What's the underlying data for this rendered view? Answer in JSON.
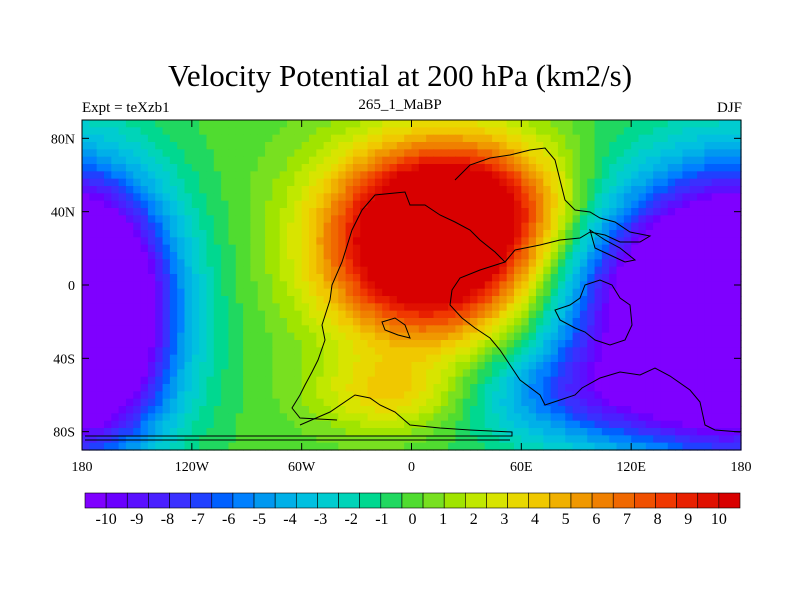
{
  "chart_data": {
    "type": "heatmap",
    "title": "Velocity Potential at 200 hPa (km2/s)",
    "subtitle_left": "Expt = teXzb1",
    "subtitle_center": "265_1_MaBP",
    "subtitle_right": "DJF",
    "xlim": [
      -180,
      180
    ],
    "ylim": [
      -90,
      90
    ],
    "x_ticks": [
      {
        "value": -180,
        "label": "180"
      },
      {
        "value": -120,
        "label": "120W"
      },
      {
        "value": -60,
        "label": "60W"
      },
      {
        "value": 0,
        "label": "0"
      },
      {
        "value": 60,
        "label": "60E"
      },
      {
        "value": 120,
        "label": "120E"
      },
      {
        "value": 180,
        "label": "180"
      }
    ],
    "y_ticks": [
      {
        "value": 80,
        "label": "80N"
      },
      {
        "value": 40,
        "label": "40N"
      },
      {
        "value": 0,
        "label": "0"
      },
      {
        "value": -40,
        "label": "40S"
      },
      {
        "value": -80,
        "label": "80S"
      }
    ],
    "colorbar": {
      "labels": [
        "-10",
        "-9",
        "-8",
        "-7",
        "-6",
        "-5",
        "-4",
        "-3",
        "-2",
        "-1",
        "0",
        "1",
        "2",
        "3",
        "4",
        "5",
        "6",
        "7",
        "8",
        "9",
        "10"
      ],
      "colors": [
        "#7f00ff",
        "#6a00ff",
        "#5a10ff",
        "#4a20ff",
        "#3a30ff",
        "#2040ff",
        "#0060ff",
        "#0080ff",
        "#0098f0",
        "#00b0e8",
        "#00c0e0",
        "#00ccd0",
        "#00d4b8",
        "#00d890",
        "#20d860",
        "#50dc30",
        "#78e020",
        "#a0e400",
        "#c0e800",
        "#d8e400",
        "#e8d800",
        "#f0c800",
        "#f0b000",
        "#f09800",
        "#f08000",
        "#f06800",
        "#f05000",
        "#f03800",
        "#e82000",
        "#e01000",
        "#d80000"
      ]
    },
    "field_sources": [
      {
        "lon": 10,
        "lat": 20,
        "sx": 40,
        "sy": 35,
        "amp": 15
      },
      {
        "lon": 35,
        "lat": 45,
        "sx": 40,
        "sy": 25,
        "amp": 6
      },
      {
        "lon": -10,
        "lat": -60,
        "sx": 30,
        "sy": 15,
        "amp": 4
      },
      {
        "lon": 145,
        "lat": -10,
        "sx": 45,
        "sy": 45,
        "amp": -14
      },
      {
        "lon": -175,
        "lat": -15,
        "sx": 30,
        "sy": 50,
        "amp": -13
      },
      {
        "lon": 100,
        "lat": -60,
        "sx": 60,
        "sy": 20,
        "amp": -5
      }
    ]
  }
}
